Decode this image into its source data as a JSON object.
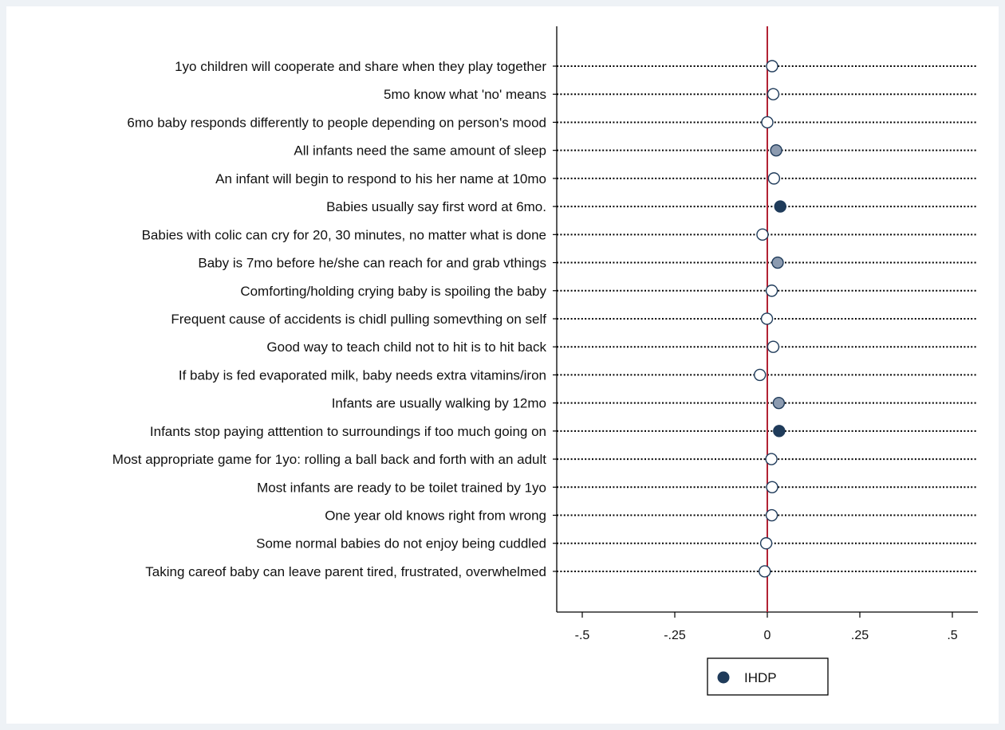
{
  "chart_data": {
    "type": "scatter",
    "orientation": "horizontal-dot-plot",
    "categories": [
      "1yo children will cooperate and share when they play together",
      "5mo know what 'no' means",
      "6mo baby responds differently to people depending on person's mood",
      "All infants need the same amount of sleep",
      "An infant will begin to respond to his her name at 10mo",
      "Babies usually say first word at 6mo.",
      "Babies with colic can cry for 20, 30 minutes, no matter what is done",
      "Baby is 7mo before he/she can reach for and grab vthings",
      "Comforting/holding crying baby is spoiling the baby",
      "Frequent cause of accidents is chidl pulling somevthing on self",
      "Good way to teach child not to hit is to hit back",
      "If baby is fed evaporated milk, baby needs extra vitamins/iron",
      "Infants are usually walking by 12mo",
      "Infants stop paying atttention to surroundings if too much going on",
      "Most appropriate game for 1yo: rolling a ball back and forth with an adult",
      "Most infants are ready to be toilet trained by 1yo",
      "One year old knows right from wrong",
      "Some normal babies do not enjoy being cuddled",
      "Taking careof baby can leave parent tired, frustrated, overwhelmed"
    ],
    "series": [
      {
        "name": "IHDP",
        "values": [
          0.013,
          0.016,
          0.0,
          0.024,
          0.018,
          0.035,
          -0.013,
          0.028,
          0.012,
          -0.001,
          0.016,
          -0.02,
          0.031,
          0.032,
          0.011,
          0.013,
          0.012,
          -0.003,
          -0.007
        ],
        "fill_levels": [
          "open",
          "open",
          "open",
          "gray",
          "open",
          "dark",
          "open",
          "gray",
          "open",
          "open",
          "open",
          "open",
          "gray",
          "dark",
          "open",
          "open",
          "open",
          "open",
          "open"
        ]
      }
    ],
    "x_ticks": [
      "-.5",
      "-.25",
      "0",
      ".25",
      ".5"
    ],
    "x_tick_values": [
      -0.5,
      -0.25,
      0,
      0.25,
      0.5
    ],
    "xlim": [
      -0.57,
      0.57
    ],
    "reference_line_x": 0,
    "grid": false,
    "legend_position": "bottom-center",
    "colors": {
      "dark": "#1f3b5a",
      "gray": "#8c9bb0",
      "open": "#ffffff",
      "outline": "#1f3b5a",
      "reference_line": "#b22234",
      "background": "#eef2f6",
      "plot": "#ffffff"
    }
  },
  "legend": {
    "label": "IHDP",
    "marker_icon": "filled-circle-icon"
  }
}
